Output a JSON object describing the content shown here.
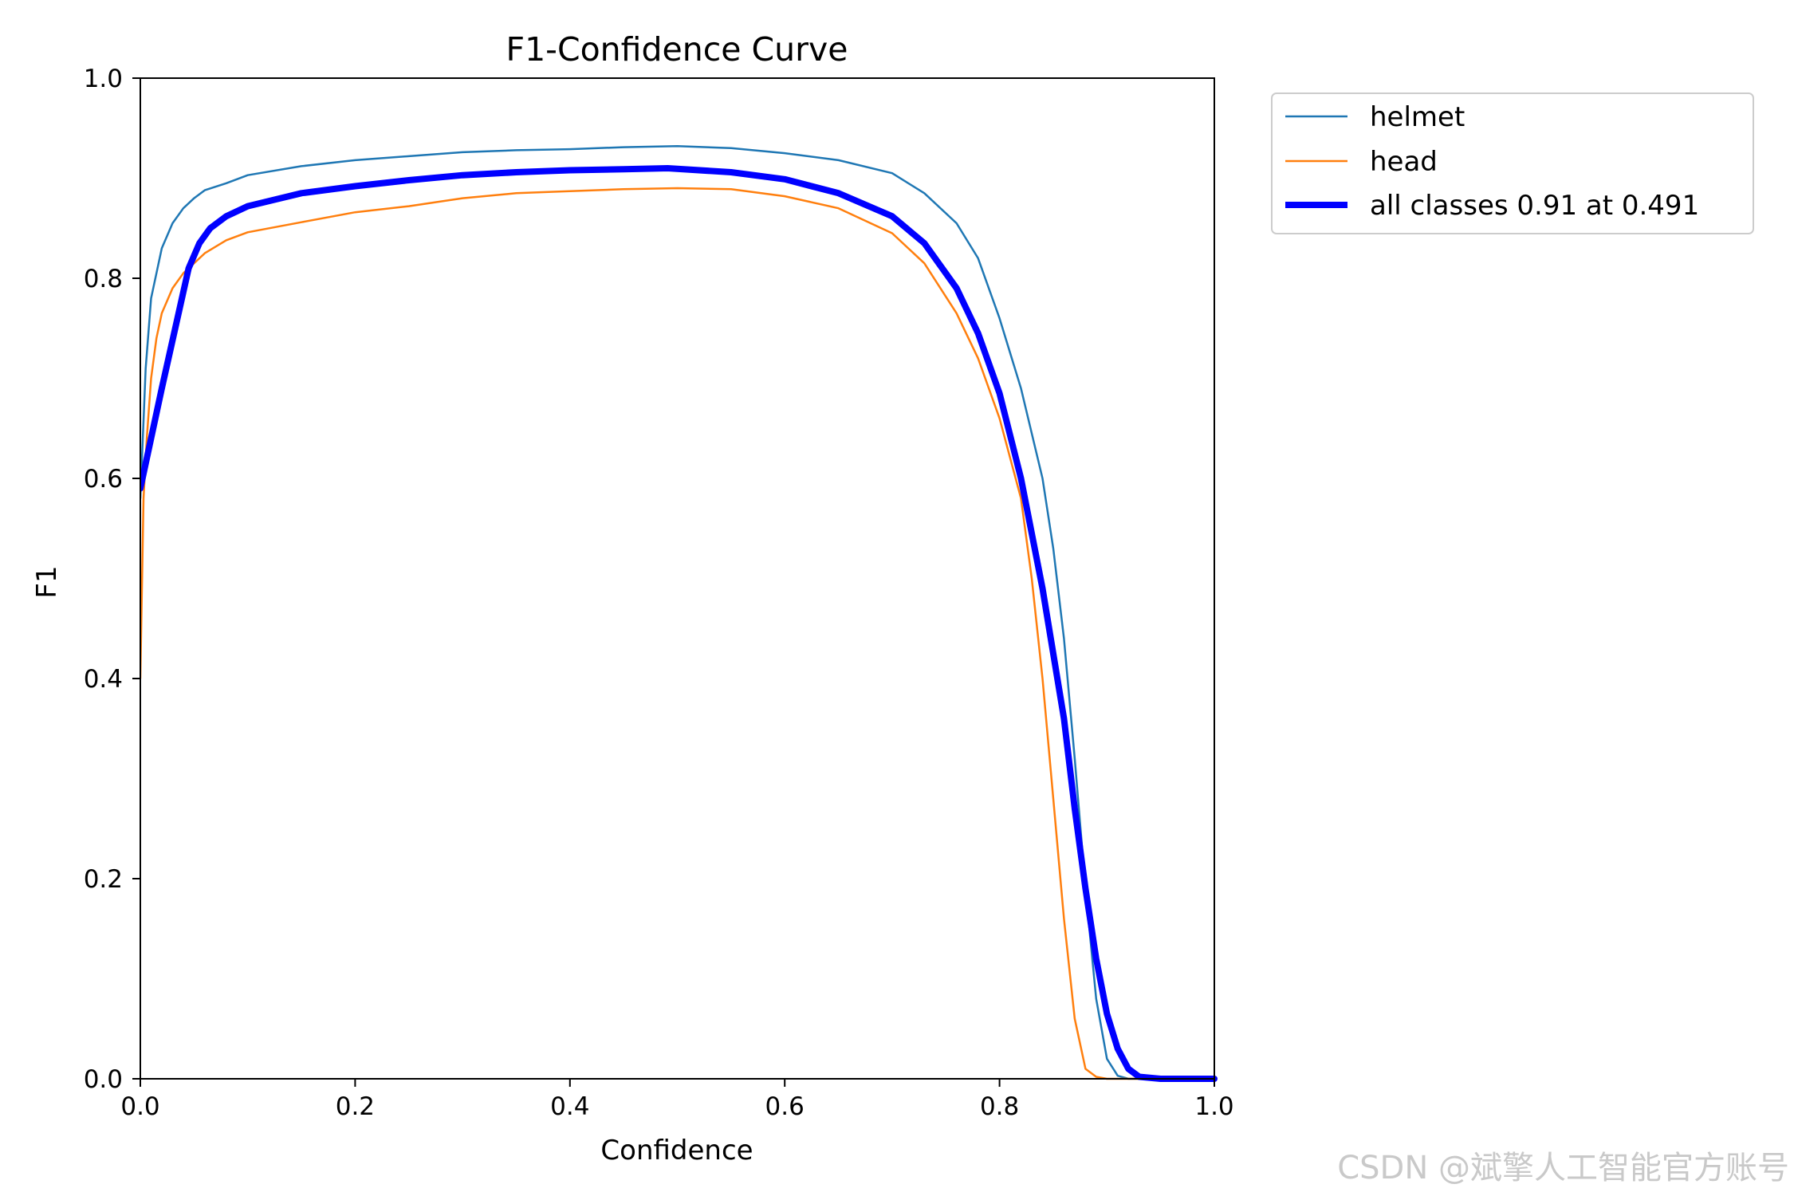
{
  "chart_data": {
    "type": "line",
    "title": "F1-Confidence Curve",
    "xlabel": "Confidence",
    "ylabel": "F1",
    "xlim": [
      0.0,
      1.0
    ],
    "ylim": [
      0.0,
      1.0
    ],
    "x_ticks": [
      "0.0",
      "0.2",
      "0.4",
      "0.6",
      "0.8",
      "1.0"
    ],
    "y_ticks": [
      "0.0",
      "0.2",
      "0.4",
      "0.6",
      "0.8",
      "1.0"
    ],
    "grid": false,
    "legend_position": "outside-top-right",
    "series": [
      {
        "name": "helmet",
        "color": "#1f77b4",
        "x": [
          0.0,
          0.005,
          0.01,
          0.02,
          0.03,
          0.04,
          0.05,
          0.06,
          0.08,
          0.1,
          0.15,
          0.2,
          0.25,
          0.3,
          0.35,
          0.4,
          0.45,
          0.5,
          0.55,
          0.6,
          0.65,
          0.7,
          0.73,
          0.76,
          0.78,
          0.8,
          0.82,
          0.84,
          0.85,
          0.86,
          0.87,
          0.88,
          0.89,
          0.9,
          0.91,
          0.92,
          0.95,
          1.0
        ],
        "y": [
          0.58,
          0.71,
          0.78,
          0.83,
          0.855,
          0.87,
          0.88,
          0.888,
          0.895,
          0.903,
          0.912,
          0.918,
          0.922,
          0.926,
          0.928,
          0.929,
          0.931,
          0.932,
          0.93,
          0.925,
          0.918,
          0.905,
          0.885,
          0.855,
          0.82,
          0.76,
          0.69,
          0.6,
          0.53,
          0.44,
          0.32,
          0.19,
          0.08,
          0.02,
          0.003,
          0.0,
          0.0,
          0.0
        ]
      },
      {
        "name": "head",
        "color": "#ff7f0e",
        "x": [
          0.0,
          0.003,
          0.006,
          0.01,
          0.015,
          0.02,
          0.03,
          0.04,
          0.05,
          0.06,
          0.08,
          0.1,
          0.15,
          0.2,
          0.25,
          0.3,
          0.35,
          0.4,
          0.45,
          0.5,
          0.55,
          0.6,
          0.65,
          0.7,
          0.73,
          0.76,
          0.78,
          0.8,
          0.82,
          0.83,
          0.84,
          0.85,
          0.86,
          0.87,
          0.88,
          0.89,
          0.9,
          1.0
        ],
        "y": [
          0.4,
          0.58,
          0.64,
          0.7,
          0.74,
          0.765,
          0.79,
          0.805,
          0.815,
          0.825,
          0.838,
          0.846,
          0.856,
          0.866,
          0.872,
          0.88,
          0.885,
          0.887,
          0.889,
          0.89,
          0.889,
          0.882,
          0.87,
          0.845,
          0.815,
          0.765,
          0.72,
          0.66,
          0.58,
          0.5,
          0.4,
          0.28,
          0.16,
          0.06,
          0.01,
          0.002,
          0.0,
          0.0
        ]
      },
      {
        "name": "all classes 0.91 at 0.491",
        "color": "#0000ff",
        "bold": true,
        "x": [
          0.0,
          0.02,
          0.045,
          0.055,
          0.065,
          0.08,
          0.1,
          0.15,
          0.2,
          0.25,
          0.3,
          0.35,
          0.4,
          0.45,
          0.491,
          0.55,
          0.6,
          0.65,
          0.7,
          0.73,
          0.76,
          0.78,
          0.8,
          0.82,
          0.84,
          0.86,
          0.87,
          0.88,
          0.89,
          0.9,
          0.91,
          0.92,
          0.93,
          0.95,
          1.0
        ],
        "y": [
          0.59,
          0.69,
          0.81,
          0.835,
          0.85,
          0.862,
          0.872,
          0.885,
          0.892,
          0.898,
          0.903,
          0.906,
          0.908,
          0.909,
          0.91,
          0.906,
          0.899,
          0.885,
          0.862,
          0.835,
          0.79,
          0.745,
          0.685,
          0.6,
          0.49,
          0.36,
          0.27,
          0.19,
          0.12,
          0.065,
          0.03,
          0.01,
          0.002,
          0.0,
          0.0
        ]
      }
    ]
  },
  "watermark": "CSDN @斌擎人工智能官方账号"
}
